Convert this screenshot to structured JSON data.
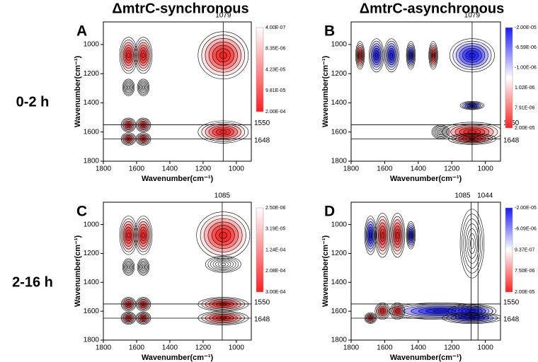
{
  "columns": [
    "ΔmtrC-synchronous",
    "ΔmtrC-asynchronous"
  ],
  "rows": [
    "0-2 h",
    "2-16 h"
  ],
  "chart_data": [
    {
      "type": "contour",
      "panel": "A",
      "x_label": "Wavenumber(cm⁻¹)",
      "y_label": "Wavenumber(cm⁻¹)",
      "xlim": [
        1800,
        910
      ],
      "ylim": [
        1800,
        845
      ],
      "xticks": [
        1800,
        1600,
        1400,
        1200,
        1000
      ],
      "yticks": [
        1000,
        1200,
        1400,
        1600,
        1800
      ],
      "vlines": [
        1079
      ],
      "hlines": [
        1550,
        1648
      ],
      "colorbar": {
        "colors": [
          "#ffffff",
          "#ff2020"
        ],
        "labels": [
          "4.00E-07",
          "8.35E-06",
          "4.23E-05",
          "9.81E-05",
          "2.00E-04"
        ]
      }
    },
    {
      "type": "contour",
      "panel": "B",
      "x_label": "Wavenumber(cm⁻¹)",
      "y_label": "Wavenumber(cm⁻¹)",
      "xlim": [
        1800,
        910
      ],
      "ylim": [
        1800,
        845
      ],
      "xticks": [
        1800,
        1600,
        1400,
        1200,
        1000
      ],
      "yticks": [
        1000,
        1200,
        1400,
        1600,
        1800
      ],
      "vlines": [
        1079
      ],
      "hlines": [
        1550,
        1648
      ],
      "colorbar": {
        "colors": [
          "#1a1aff",
          "#ffffff",
          "#ff2020"
        ],
        "labels": [
          "-2.00E-05",
          "-6.59E-06",
          "-1.00E-06",
          "1.02E-06",
          "7.91E-06",
          "2.00E-05"
        ]
      }
    },
    {
      "type": "contour",
      "panel": "C",
      "x_label": "Wavenumber(cm⁻¹)",
      "y_label": "Wavenumber(cm⁻¹)",
      "xlim": [
        1800,
        910
      ],
      "ylim": [
        1800,
        845
      ],
      "xticks": [
        1800,
        1600,
        1400,
        1200,
        1000
      ],
      "yticks": [
        1000,
        1200,
        1400,
        1600,
        1800
      ],
      "vlines": [
        1085
      ],
      "hlines": [
        1550,
        1648
      ],
      "colorbar": {
        "colors": [
          "#ffffff",
          "#ff2020"
        ],
        "labels": [
          "2.50E-06",
          "3.19E-05",
          "1.24E-04",
          "2.08E-04",
          "3.00E-04"
        ]
      }
    },
    {
      "type": "contour",
      "panel": "D",
      "x_label": "Wavenumber(cm⁻¹)",
      "y_label": "Wavenumber(cm⁻¹)",
      "xlim": [
        1800,
        910
      ],
      "ylim": [
        1800,
        845
      ],
      "xticks": [
        1800,
        1600,
        1400,
        1200,
        1000
      ],
      "yticks": [
        1000,
        1200,
        1400,
        1600,
        1800
      ],
      "vlines": [
        1085,
        1044
      ],
      "hlines": [
        1550,
        1648
      ],
      "colorbar": {
        "colors": [
          "#1a1aff",
          "#ffffff",
          "#ff2020"
        ],
        "labels": [
          "-2.00E-05",
          "-6.09E-06",
          "9.37E-07",
          "7.50E-06",
          "2.00E-05"
        ]
      }
    }
  ]
}
